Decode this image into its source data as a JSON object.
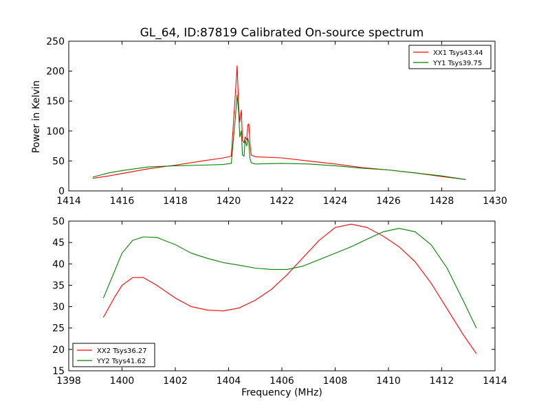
{
  "chart_data": [
    {
      "type": "line",
      "title": "GL_64, ID:87819 Calibrated On-source spectrum",
      "xlabel": "",
      "ylabel": "Power in Kelvin",
      "xlim": [
        1414,
        1430
      ],
      "ylim": [
        0,
        250
      ],
      "xticks": [
        1414,
        1416,
        1418,
        1420,
        1422,
        1424,
        1426,
        1428,
        1430
      ],
      "yticks": [
        0,
        50,
        100,
        150,
        200,
        250
      ],
      "grid": false,
      "legend_position": "top-right",
      "series": [
        {
          "name": "XX1 Tsys43.44",
          "color": "#ff0000",
          "x": [
            1414.9,
            1415.5,
            1416,
            1417,
            1418,
            1419,
            1419.8,
            1420.1,
            1420.25,
            1420.32,
            1420.38,
            1420.42,
            1420.48,
            1420.52,
            1420.58,
            1420.62,
            1420.68,
            1420.72,
            1420.76,
            1420.8,
            1420.85,
            1421,
            1422,
            1423,
            1424,
            1425,
            1426,
            1427,
            1428,
            1428.9
          ],
          "y": [
            21,
            25,
            29,
            37,
            43,
            50,
            55,
            58,
            160,
            209,
            140,
            115,
            135,
            85,
            80,
            90,
            85,
            110,
            112,
            80,
            60,
            57,
            55,
            50,
            45,
            39,
            35,
            30,
            24,
            19
          ]
        },
        {
          "name": "YY1 Tsys39.75",
          "color": "#008000",
          "x": [
            1414.9,
            1415.5,
            1416,
            1417,
            1418,
            1419,
            1419.8,
            1420.1,
            1420.25,
            1420.32,
            1420.38,
            1420.42,
            1420.48,
            1420.52,
            1420.58,
            1420.62,
            1420.68,
            1420.72,
            1420.76,
            1420.8,
            1420.85,
            1421,
            1422,
            1423,
            1424,
            1425,
            1426,
            1427,
            1428,
            1428.9
          ],
          "y": [
            23,
            30,
            34,
            40,
            42,
            43,
            44,
            46,
            120,
            160,
            130,
            90,
            100,
            60,
            58,
            85,
            75,
            88,
            80,
            55,
            47,
            45,
            46,
            45,
            42,
            38,
            35,
            30,
            25,
            19
          ]
        }
      ]
    },
    {
      "type": "line",
      "title": "",
      "xlabel": "Frequency (MHz)",
      "ylabel": "",
      "xlim": [
        1398,
        1414
      ],
      "ylim": [
        15,
        50
      ],
      "xticks": [
        1398,
        1400,
        1402,
        1404,
        1406,
        1408,
        1410,
        1412,
        1414
      ],
      "yticks": [
        15,
        20,
        25,
        30,
        35,
        40,
        45,
        50
      ],
      "grid": false,
      "legend_position": "bottom-left",
      "series": [
        {
          "name": "XX2 Tsys36.27",
          "color": "#ff0000",
          "x": [
            1399.3,
            1399.7,
            1400,
            1400.4,
            1400.8,
            1401.3,
            1402,
            1402.6,
            1403.2,
            1403.8,
            1404.4,
            1405,
            1405.6,
            1406.2,
            1406.8,
            1407.4,
            1408,
            1408.6,
            1409.2,
            1409.8,
            1410.4,
            1411,
            1411.6,
            1412.2,
            1412.8,
            1413.3
          ],
          "y": [
            27.5,
            32,
            35,
            36.8,
            36.8,
            35,
            32,
            30,
            29.2,
            29,
            29.7,
            31.5,
            34,
            37.5,
            41.5,
            45.5,
            48.5,
            49.3,
            48.5,
            46.5,
            44,
            40.5,
            35.5,
            29.5,
            23.5,
            19
          ]
        },
        {
          "name": "YY2 Tsys41.62",
          "color": "#008000",
          "x": [
            1399.3,
            1399.7,
            1400,
            1400.4,
            1400.8,
            1401.3,
            1402,
            1402.6,
            1403.2,
            1403.8,
            1404.4,
            1405,
            1405.6,
            1406.2,
            1406.8,
            1407.4,
            1408,
            1408.6,
            1409.2,
            1409.8,
            1410.4,
            1411,
            1411.6,
            1412.2,
            1412.8,
            1413.3
          ],
          "y": [
            32,
            38,
            42.5,
            45.5,
            46.3,
            46.2,
            44.5,
            42.5,
            41.3,
            40.3,
            39.7,
            39,
            38.7,
            38.7,
            39.5,
            41,
            42.5,
            44,
            45.8,
            47.5,
            48.3,
            47.5,
            44.5,
            39,
            31.5,
            25
          ]
        }
      ]
    }
  ]
}
